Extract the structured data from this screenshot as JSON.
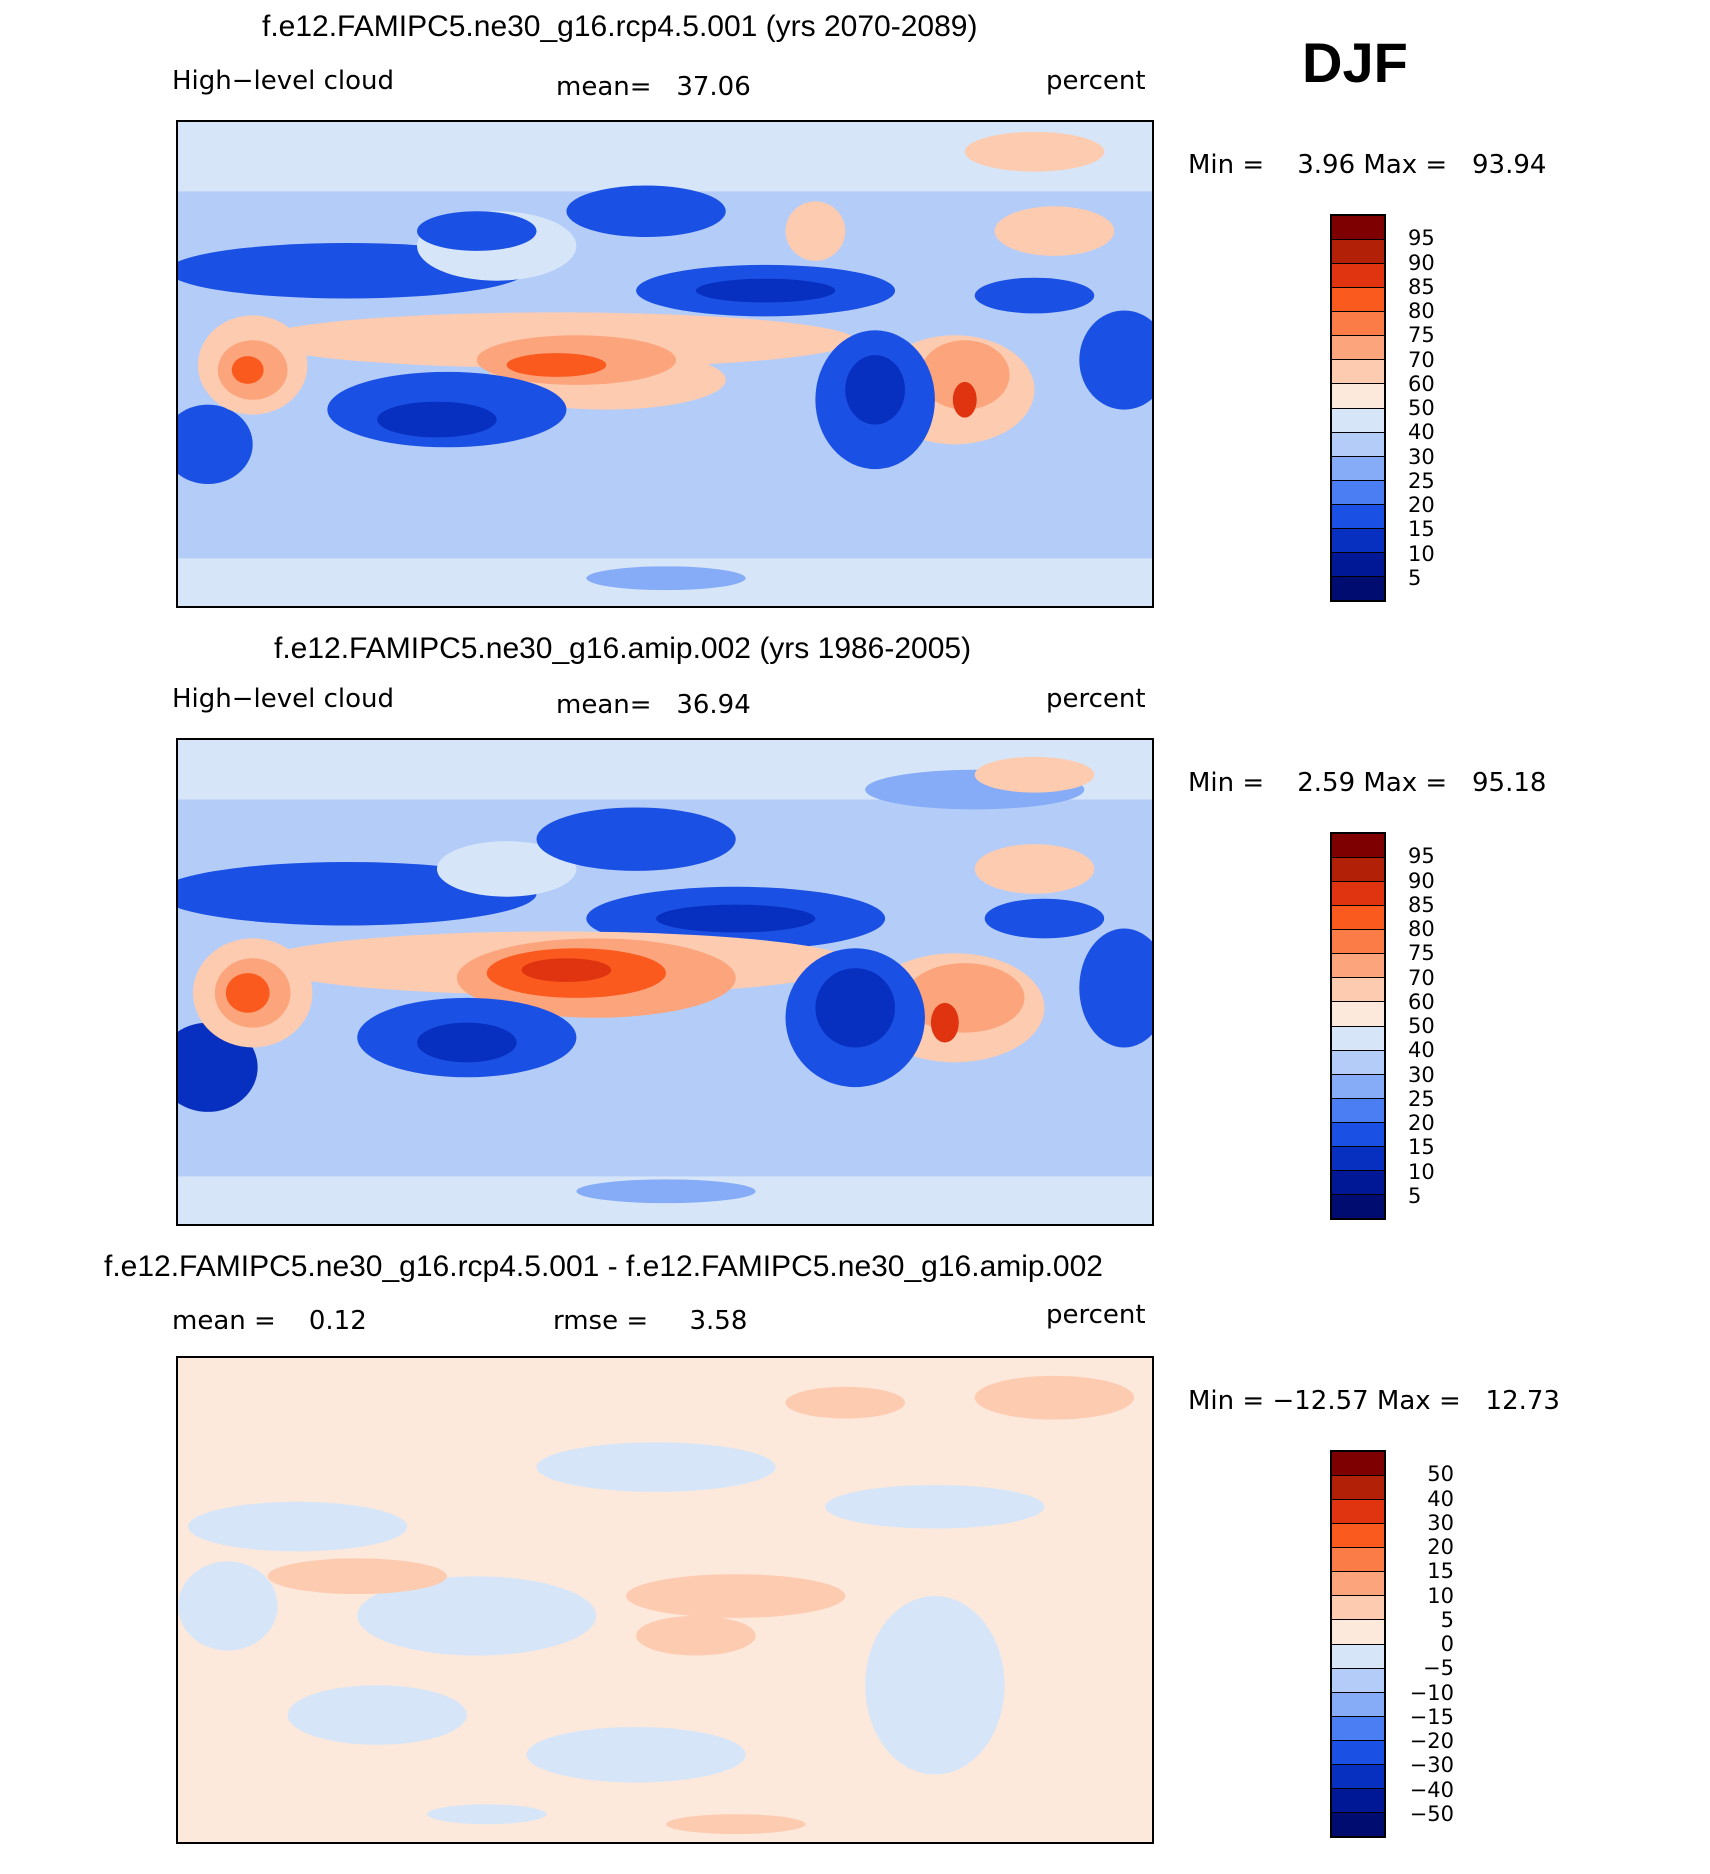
{
  "season": "DJF",
  "panels": [
    {
      "title": "f.e12.FAMIPC5.ne30_g16.rcp4.5.001 (yrs 2070-2089)",
      "left_label": "High−level cloud",
      "center_label": "mean=   37.06",
      "right_label": "percent",
      "minmax": "Min =    3.96 Max =   93.94",
      "kind": "absolute",
      "colorbar_labels": [
        "95",
        "90",
        "85",
        "80",
        "75",
        "70",
        "60",
        "50",
        "40",
        "30",
        "25",
        "20",
        "15",
        "10",
        "5"
      ]
    },
    {
      "title": "f.e12.FAMIPC5.ne30_g16.amip.002 (yrs 1986-2005)",
      "left_label": "High−level cloud",
      "center_label": "mean=   36.94",
      "right_label": "percent",
      "minmax": "Min =    2.59 Max =   95.18",
      "kind": "absolute",
      "colorbar_labels": [
        "95",
        "90",
        "85",
        "80",
        "75",
        "70",
        "60",
        "50",
        "40",
        "30",
        "25",
        "20",
        "15",
        "10",
        "5"
      ]
    },
    {
      "title": "f.e12.FAMIPC5.ne30_g16.rcp4.5.001 - f.e12.FAMIPC5.ne30_g16.amip.002",
      "left_label": "mean =    0.12",
      "center_label": "rmse =     3.58",
      "right_label": "percent",
      "minmax": "Min = −12.57 Max =   12.73",
      "kind": "difference",
      "colorbar_labels": [
        "50",
        "40",
        "30",
        "20",
        "15",
        "10",
        "5",
        "0",
        "−5",
        "−10",
        "−15",
        "−20",
        "−30",
        "−40",
        "−50"
      ]
    }
  ],
  "colors": {
    "absolute": [
      "#7f0000",
      "#b22008",
      "#e03410",
      "#fa5a1e",
      "#fc7c48",
      "#fca47c",
      "#fdcbb0",
      "#fde8dc",
      "#d6e6f8",
      "#b4ccf8",
      "#86acf8",
      "#4a7ef2",
      "#1a50e4",
      "#0830c0",
      "#001896",
      "#000c70"
    ],
    "difference": [
      "#7f0000",
      "#b22008",
      "#e03410",
      "#fa5a1e",
      "#fc7c48",
      "#fca47c",
      "#fdcbb0",
      "#fde8dc",
      "#d6e6f8",
      "#b4ccf8",
      "#86acf8",
      "#4a7ef2",
      "#1a50e4",
      "#0830c0",
      "#001896",
      "#000c70"
    ]
  }
}
